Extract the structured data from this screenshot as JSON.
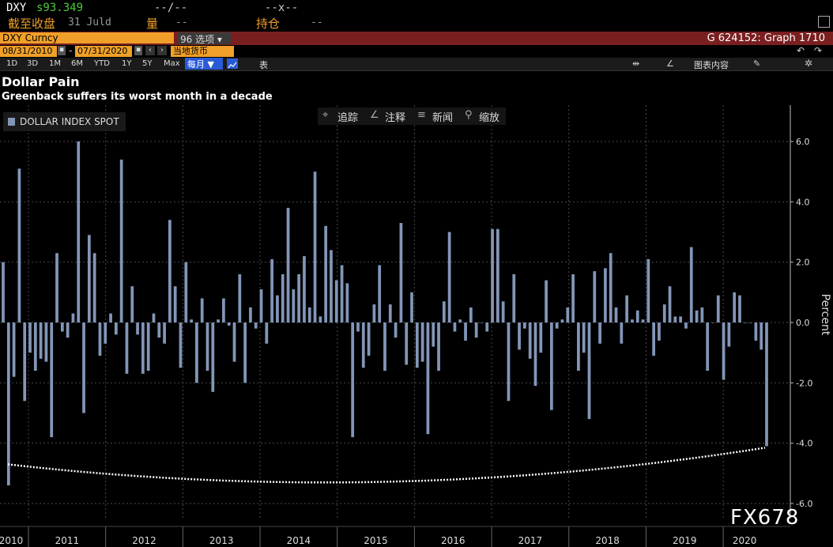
{
  "header": {
    "ticker": "DXY",
    "price": "s93.349",
    "row1_mid": "--/--",
    "row1_x": "--x--",
    "label_close": "截至收盘",
    "close_date": "31 Juld",
    "label_volume": "量",
    "volume_value": "--",
    "label_position": "持仓",
    "position_value": "--"
  },
  "function_bar": {
    "security": "DXY Curncy",
    "options_label": "96 选项",
    "graph_id": "G 624152: Graph 1710"
  },
  "date_bar": {
    "start_date": "08/31/2010",
    "end_date": "07/31/2020",
    "currency": "当地货币"
  },
  "period_bar": {
    "periods": [
      "1D",
      "3D",
      "1M",
      "6M",
      "YTD",
      "1Y",
      "5Y",
      "Max"
    ],
    "frequency": "每月",
    "table_label": "表",
    "chart_content_label": "图表内容"
  },
  "chart_header": {
    "title": "Dollar Pain",
    "subtitle": "Greenback suffers its worst month in a decade"
  },
  "toolbar": {
    "track": "追踪",
    "annotate": "注释",
    "news": "新闻",
    "zoom": "缩放"
  },
  "watermark": "FX678",
  "colors": {
    "bar": "#8296b8",
    "function_bar": "#7a1f20",
    "accent_orange": "#f0a028",
    "price_green": "#4ec93a"
  },
  "chart_data": {
    "type": "bar",
    "legend": "DOLLAR INDEX SPOT",
    "ylabel": "Percent",
    "ylim": [
      -6.3,
      7.0
    ],
    "yticks": [
      6.0,
      4.0,
      2.0,
      0.0,
      -2.0,
      -4.0,
      -6.0
    ],
    "ytick_labels": [
      "6.0",
      "4.0",
      "2.0",
      "0.0",
      "-2.0",
      "-4.0",
      "-6.0"
    ],
    "x_labels": [
      "2010",
      "2011",
      "2012",
      "2013",
      "2014",
      "2015",
      "2016",
      "2017",
      "2018",
      "2019",
      "2020"
    ],
    "trend_endpoints": [
      -4.7,
      -5.3,
      -4.15
    ],
    "values": [
      2.0,
      -5.4,
      -1.8,
      5.1,
      -2.6,
      -1.0,
      -1.6,
      -1.2,
      -1.3,
      -3.8,
      2.3,
      -0.3,
      -0.5,
      0.3,
      6.0,
      -3.0,
      2.9,
      2.3,
      -1.1,
      -0.7,
      0.3,
      -0.4,
      5.4,
      -1.7,
      1.2,
      -0.4,
      -1.7,
      -1.6,
      0.3,
      -0.5,
      -0.7,
      3.4,
      1.2,
      -1.5,
      2.0,
      0.1,
      -2.0,
      0.8,
      -1.6,
      -2.3,
      0.1,
      0.8,
      -0.1,
      -1.3,
      1.6,
      -2.0,
      0.5,
      -0.2,
      1.1,
      -0.7,
      2.1,
      0.9,
      1.6,
      3.8,
      1.1,
      1.6,
      2.2,
      0.5,
      5.0,
      0.2,
      3.2,
      2.4,
      1.4,
      1.9,
      1.3,
      -3.8,
      -0.3,
      -1.5,
      -1.1,
      0.6,
      1.9,
      -1.6,
      0.6,
      -0.5,
      3.3,
      -1.4,
      1.0,
      -1.5,
      -1.3,
      -3.7,
      -0.8,
      -1.6,
      0.7,
      3.0,
      -0.3,
      0.1,
      -0.6,
      0.5,
      -0.5,
      0.0,
      -0.3,
      3.1,
      3.1,
      0.7,
      -2.6,
      1.6,
      -0.9,
      -0.2,
      -1.2,
      -2.1,
      -1.0,
      1.4,
      -2.9,
      -0.2,
      0.1,
      0.5,
      1.6,
      -1.6,
      -1.0,
      -3.2,
      1.7,
      -0.7,
      1.8,
      2.3,
      0.5,
      -0.7,
      0.9,
      0.1,
      0.4,
      0.1,
      2.1,
      -1.1,
      -0.6,
      0.6,
      1.2,
      0.2,
      0.2,
      -0.2,
      2.5,
      0.4,
      0.5,
      -1.6,
      0.0,
      0.9,
      -1.9,
      -0.8,
      1.0,
      0.9,
      0.0,
      0.0,
      -0.6,
      -0.9,
      -4.1
    ]
  }
}
